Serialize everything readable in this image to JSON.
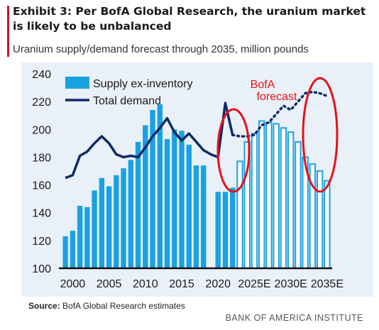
{
  "header": {
    "title": "Exhibit 3: Per BofA Global Research, the uranium market is likely to be unbalanced",
    "subtitle": "Uranium supply/demand forecast through 2035, million pounds"
  },
  "footer": {
    "source_label": "Source:",
    "source_text": " BofA Global Research estimates",
    "brand": "BANK OF AMERICA INSTITUTE"
  },
  "annotation": {
    "text_line1": "BofA",
    "text_line2": "forecast",
    "color": "#e8101b"
  },
  "colors": {
    "supply": "#1ba1e2",
    "demand": "#0d2b66",
    "plot_bg": "#eaf0f7",
    "axis": "#111111"
  },
  "chart_data": {
    "type": "bar",
    "title": "Uranium supply/demand forecast through 2035, million pounds",
    "ylim": [
      100,
      240
    ],
    "yticks": [
      100,
      120,
      140,
      160,
      180,
      200,
      220,
      240
    ],
    "xtick_labels": [
      "2000",
      "2005",
      "2010",
      "2015",
      "2020",
      "2025E",
      "2030E",
      "2035E"
    ],
    "categories": [
      "1999",
      "2000",
      "2001",
      "2002",
      "2003",
      "2004",
      "2005",
      "2006",
      "2007",
      "2008",
      "2009",
      "2010",
      "2011",
      "2012",
      "2013",
      "2014",
      "2015",
      "2016",
      "2017",
      "2018",
      "2019",
      "2020",
      "2021",
      "2022",
      "2023E",
      "2024E",
      "2025E",
      "2026E",
      "2027E",
      "2028E",
      "2029E",
      "2030E",
      "2031E",
      "2032E",
      "2033E",
      "2034E",
      "2035E"
    ],
    "series": [
      {
        "name": "Supply ex-inventory",
        "values": [
          123,
          127,
          145,
          144,
          156,
          165,
          159,
          167,
          172,
          178,
          191,
          203,
          214,
          218,
          193,
          200,
          199,
          189,
          174,
          174,
          null,
          155,
          155,
          158,
          177,
          191,
          197,
          206,
          205,
          204,
          201,
          198,
          191,
          180,
          175,
          170,
          163
        ],
        "forecast_from": "2023E"
      },
      {
        "name": "Total demand",
        "values": [
          165,
          167,
          181,
          184,
          190,
          195,
          190,
          182,
          180,
          181,
          180,
          187,
          195,
          201,
          208,
          198,
          192,
          197,
          191,
          185,
          182,
          180,
          219,
          196,
          195,
          195,
          196,
          203,
          205,
          211,
          217,
          214,
          220,
          226,
          227,
          226,
          224
        ],
        "forecast_from": "2023E"
      }
    ],
    "legend": "top-left"
  }
}
